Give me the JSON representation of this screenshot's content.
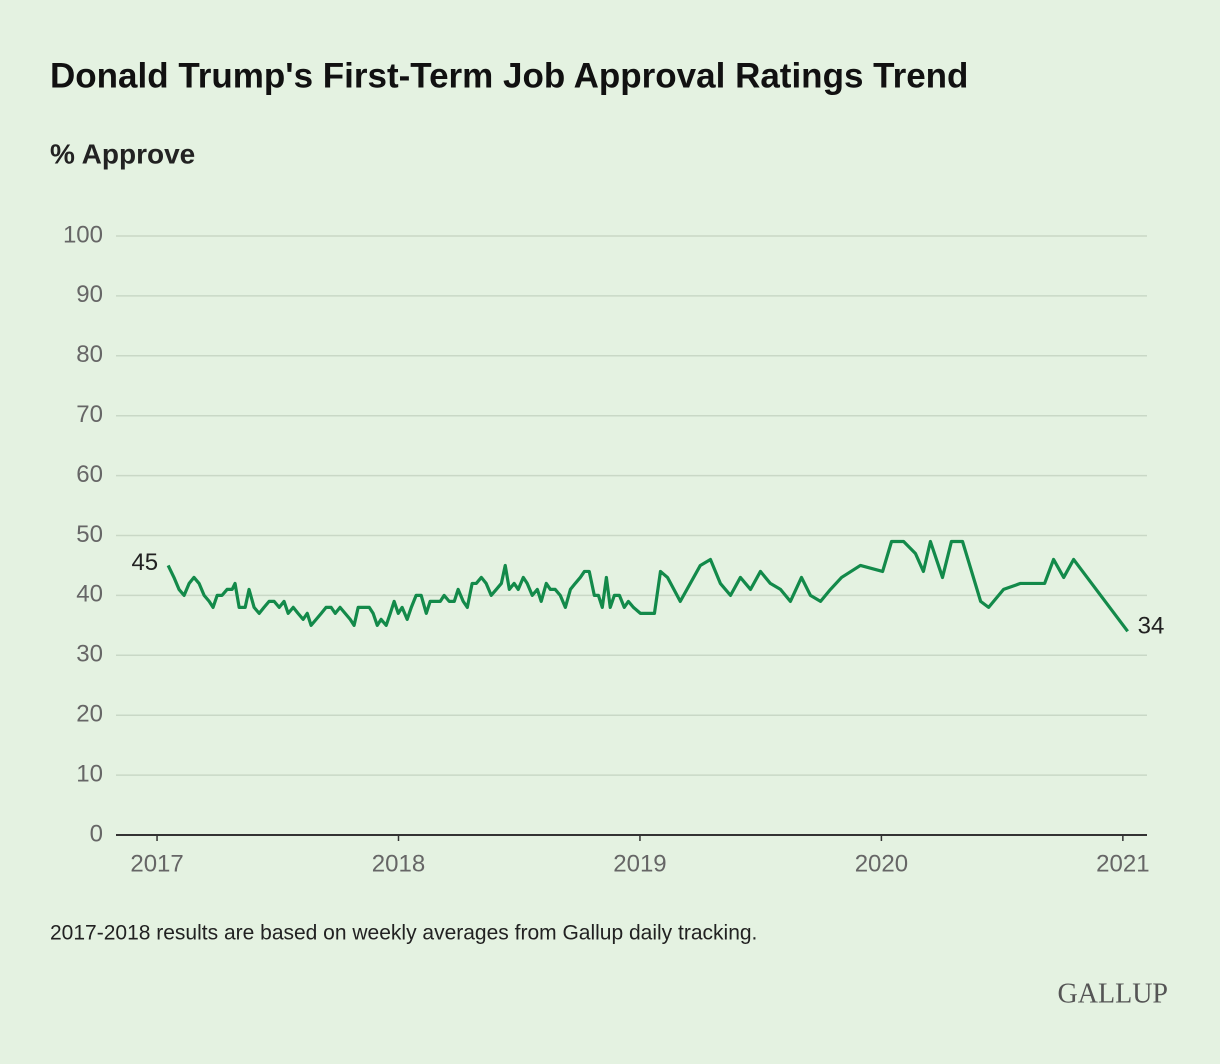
{
  "chart_data": {
    "type": "line",
    "title": "Donald Trump's First-Term Job Approval Ratings Trend",
    "subtitle": "% Approve",
    "footnote": "2017-2018 results are based on weekly averages from Gallup daily tracking.",
    "source": "GALLUP",
    "x": [
      2017.046,
      2017.07,
      2017.091,
      2017.112,
      2017.133,
      2017.153,
      2017.174,
      2017.195,
      2017.216,
      2017.232,
      2017.249,
      2017.269,
      2017.29,
      2017.311,
      2017.323,
      2017.34,
      2017.365,
      2017.381,
      2017.402,
      2017.423,
      2017.443,
      2017.464,
      2017.485,
      2017.506,
      2017.526,
      2017.543,
      2017.564,
      2017.584,
      2017.605,
      2017.622,
      2017.638,
      2017.659,
      2017.68,
      2017.7,
      2017.721,
      2017.738,
      2017.758,
      2017.779,
      2017.8,
      2017.816,
      2017.833,
      2017.858,
      2017.879,
      2017.895,
      2017.912,
      2017.928,
      2017.949,
      2017.966,
      2017.982,
      2017.999,
      2018.015,
      2018.036,
      2018.053,
      2018.073,
      2018.094,
      2018.115,
      2018.131,
      2018.152,
      2018.173,
      2018.189,
      2018.21,
      2018.231,
      2018.247,
      2018.268,
      2018.285,
      2018.305,
      2018.322,
      2018.343,
      2018.363,
      2018.384,
      2018.405,
      2018.426,
      2018.442,
      2018.459,
      2018.479,
      2018.496,
      2018.517,
      2018.533,
      2018.554,
      2018.575,
      2018.591,
      2018.612,
      2018.629,
      2018.649,
      2018.67,
      2018.691,
      2018.712,
      2018.732,
      2018.753,
      2018.77,
      2018.79,
      2018.811,
      2018.828,
      2018.844,
      2018.861,
      2018.877,
      2018.894,
      2018.915,
      2018.935,
      2018.952,
      2018.973,
      2019.002,
      2019.031,
      2019.06,
      2019.085,
      2019.114,
      2019.167,
      2019.25,
      2019.292,
      2019.333,
      2019.375,
      2019.416,
      2019.458,
      2019.499,
      2019.54,
      2019.582,
      2019.623,
      2019.669,
      2019.706,
      2019.748,
      2019.789,
      2019.835,
      2019.913,
      2020.005,
      2020.042,
      2020.092,
      2020.141,
      2020.174,
      2020.203,
      2020.253,
      2020.29,
      2020.336,
      2020.411,
      2020.444,
      2020.506,
      2020.576,
      2020.676,
      2020.713,
      2020.755,
      2020.796,
      2021.02
    ],
    "series": [
      {
        "name": "% Approve",
        "color": "#138a4a",
        "values": [
          45,
          43,
          41,
          40,
          42,
          43,
          42,
          40,
          39,
          38,
          40,
          40,
          41,
          41,
          42,
          38,
          38,
          41,
          38,
          37,
          38,
          39,
          39,
          38,
          39,
          37,
          38,
          37,
          36,
          37,
          35,
          36,
          37,
          38,
          38,
          37,
          38,
          37,
          36,
          35,
          38,
          38,
          38,
          37,
          35,
          36,
          35,
          37,
          39,
          37,
          38,
          36,
          38,
          40,
          40,
          37,
          39,
          39,
          39,
          40,
          39,
          39,
          41,
          39,
          38,
          42,
          42,
          43,
          42,
          40,
          41,
          42,
          45,
          41,
          42,
          41,
          43,
          42,
          40,
          41,
          39,
          42,
          41,
          41,
          40,
          38,
          41,
          42,
          43,
          44,
          44,
          40,
          40,
          38,
          43,
          38,
          40,
          40,
          38,
          39,
          38,
          37,
          37,
          37,
          44,
          43,
          39,
          45,
          46,
          42,
          40,
          43,
          41,
          44,
          42,
          41,
          39,
          43,
          40,
          39,
          41,
          43,
          45,
          44,
          49,
          49,
          47,
          44,
          49,
          43,
          49,
          49,
          39,
          38,
          41,
          42,
          42,
          46,
          43,
          46,
          34
        ]
      }
    ],
    "xlim": [
      2016.83,
      2021.1
    ],
    "xticks": [
      2017,
      2018,
      2019,
      2020,
      2021
    ],
    "ylim": [
      0,
      100
    ],
    "yticks": [
      0,
      10,
      20,
      30,
      40,
      50,
      60,
      70,
      80,
      90,
      100
    ],
    "grid": true
  }
}
